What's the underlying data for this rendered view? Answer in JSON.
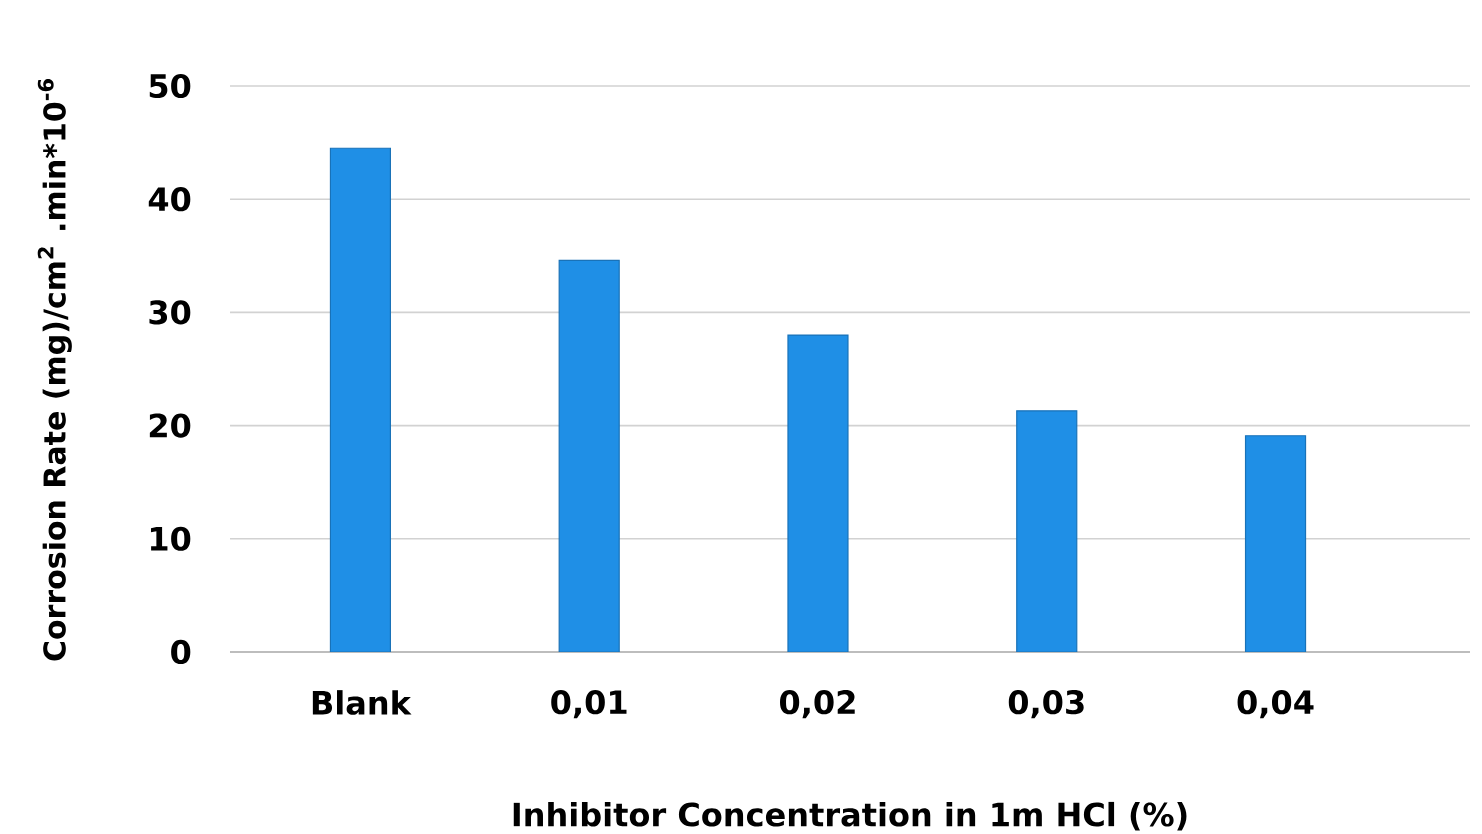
{
  "chart_data": {
    "type": "bar",
    "xlabel": "Inhibitor Concentration in 1m HCl (%)",
    "ylabel": "Corrosion Rate (mg)/cm$^{2}$ .min*10$^{-6}$",
    "categories": [
      "Blank",
      "0,01",
      "0,02",
      "0,03",
      "0,04"
    ],
    "values": [
      44.5,
      34.6,
      28.0,
      21.3,
      19.1
    ],
    "color": "#1f8fe6",
    "ylim": [
      0,
      50
    ],
    "yticks": [
      0,
      10,
      20,
      30,
      40,
      50
    ],
    "grid": "y"
  }
}
